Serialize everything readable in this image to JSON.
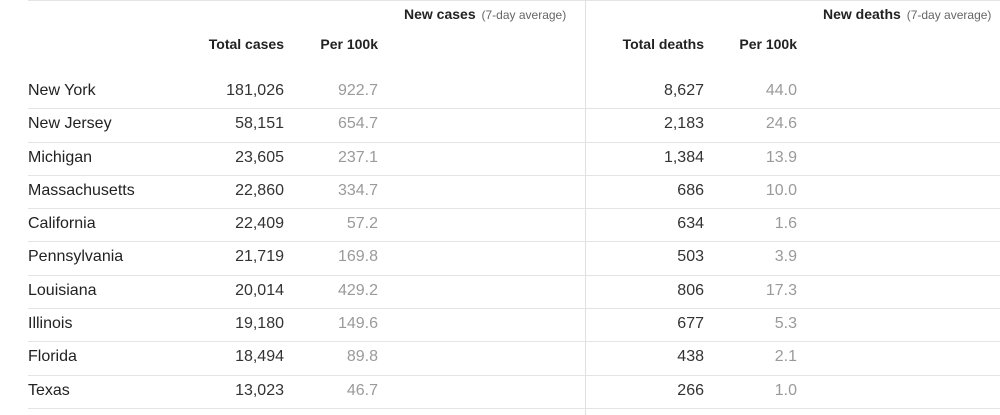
{
  "header": {
    "new_cases": {
      "title": "New cases",
      "note": "(7-day average)"
    },
    "new_deaths": {
      "title": "New deaths",
      "note": "(7-day average)"
    }
  },
  "columns": {
    "total_cases": "Total cases",
    "cases_per_100k": "Per 100k",
    "total_deaths": "Total deaths",
    "deaths_per_100k": "Per 100k"
  },
  "rows": [
    {
      "state": "New York",
      "total_cases": "181,026",
      "cases_per_100k": "922.7",
      "total_deaths": "8,627",
      "deaths_per_100k": "44.0"
    },
    {
      "state": "New Jersey",
      "total_cases": "58,151",
      "cases_per_100k": "654.7",
      "total_deaths": "2,183",
      "deaths_per_100k": "24.6"
    },
    {
      "state": "Michigan",
      "total_cases": "23,605",
      "cases_per_100k": "237.1",
      "total_deaths": "1,384",
      "deaths_per_100k": "13.9"
    },
    {
      "state": "Massachusetts",
      "total_cases": "22,860",
      "cases_per_100k": "334.7",
      "total_deaths": "686",
      "deaths_per_100k": "10.0"
    },
    {
      "state": "California",
      "total_cases": "22,409",
      "cases_per_100k": "57.2",
      "total_deaths": "634",
      "deaths_per_100k": "1.6"
    },
    {
      "state": "Pennsylvania",
      "total_cases": "21,719",
      "cases_per_100k": "169.8",
      "total_deaths": "503",
      "deaths_per_100k": "3.9"
    },
    {
      "state": "Louisiana",
      "total_cases": "20,014",
      "cases_per_100k": "429.2",
      "total_deaths": "806",
      "deaths_per_100k": "17.3"
    },
    {
      "state": "Illinois",
      "total_cases": "19,180",
      "cases_per_100k": "149.6",
      "total_deaths": "677",
      "deaths_per_100k": "5.3"
    },
    {
      "state": "Florida",
      "total_cases": "18,494",
      "cases_per_100k": "89.8",
      "total_deaths": "438",
      "deaths_per_100k": "2.1"
    },
    {
      "state": "Texas",
      "total_cases": "13,023",
      "cases_per_100k": "46.7",
      "total_deaths": "266",
      "deaths_per_100k": "1.0"
    }
  ]
}
